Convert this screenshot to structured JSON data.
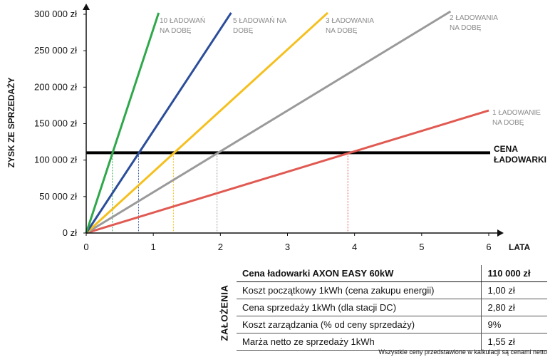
{
  "chart_data": {
    "type": "line",
    "ylabel": "ZYSK ZE SPRZEDAŻY",
    "xlabel": "LATA",
    "xlim": [
      0,
      6
    ],
    "ylim": [
      0,
      300000
    ],
    "xticks": [
      0,
      1,
      2,
      3,
      4,
      5,
      6
    ],
    "yticks": [
      0,
      50000,
      100000,
      150000,
      200000,
      250000,
      300000
    ],
    "ytick_labels": [
      "0 zł",
      "50 000 zł",
      "100 000 zł",
      "150 000 zł",
      "200 000 zł",
      "250 000 zł",
      "300 000 zł"
    ],
    "xtick_labels": [
      "0",
      "1",
      "2",
      "3",
      "4",
      "5",
      "6"
    ],
    "series": [
      {
        "name": "1 ŁADOWANIE NA DOBĘ",
        "color": "#e05a52",
        "x": [
          0,
          6
        ],
        "y": [
          0,
          168000
        ],
        "breakeven_x": 3.9
      },
      {
        "name": "2 ŁADOWANIA NA DOBĘ",
        "color": "#9a9a9a",
        "x": [
          0,
          5.45
        ],
        "y": [
          0,
          305000
        ],
        "breakeven_x": 1.95
      },
      {
        "name": "3 ŁADOWANIA NA DOBĘ",
        "color": "#f5c01e",
        "x": [
          0,
          3.6
        ],
        "y": [
          0,
          302000
        ],
        "breakeven_x": 1.3
      },
      {
        "name": "5 ŁADOWAŃ NA DOBĘ",
        "color": "#2b4d9a",
        "x": [
          0,
          2.16
        ],
        "y": [
          0,
          302000
        ],
        "breakeven_x": 0.78
      },
      {
        "name": "10 ŁADOWAŃ NA DOBĘ",
        "color": "#2ea84a",
        "x": [
          0,
          1.08
        ],
        "y": [
          0,
          302000
        ],
        "breakeven_x": 0.39
      }
    ],
    "reference_line": {
      "label": "CENA ŁADOWARKI",
      "y": 110000,
      "color": "#000000"
    },
    "series_label_lines": {
      "1 ŁADOWANIE NA DOBĘ": [
        "1 ŁADOWANIE",
        "NA DOBĘ"
      ],
      "2 ŁADOWANIA NA DOBĘ": [
        "2 ŁADOWANIA",
        "NA DOBĘ"
      ],
      "3 ŁADOWANIA NA DOBĘ": [
        "3 ŁADOWANIA",
        "NA DOBĘ"
      ],
      "5 ŁADOWAŃ NA DOBĘ": [
        "5 ŁADOWAŃ NA",
        "DOBĘ"
      ],
      "10 ŁADOWAŃ NA DOBĘ": [
        "10 ŁADOWAŃ",
        "NA DOBĘ"
      ]
    },
    "reference_label_lines": [
      "CENA",
      "ŁADOWARKI"
    ],
    "grid": false,
    "legend": "none"
  },
  "assumptions": {
    "title": "ZAŁOŻENIA",
    "rows": [
      {
        "label": "Cena ładowarki AXON EASY 60kW",
        "value": "110 000 zł"
      },
      {
        "label": "Koszt początkowy 1kWh (cena zakupu energii)",
        "value": "1,00 zł"
      },
      {
        "label": "Cena sprzedaży 1kWh (dla stacji DC)",
        "value": "2,80 zł"
      },
      {
        "label": "Koszt zarządzania (% od ceny sprzedaży)",
        "value": "9%"
      },
      {
        "label": "Marża netto ze sprzedaży 1kWh",
        "value": "1,55 zł"
      }
    ],
    "footnote": "Wszystkie ceny przedstawione w kalkulacji są cenami netto"
  }
}
